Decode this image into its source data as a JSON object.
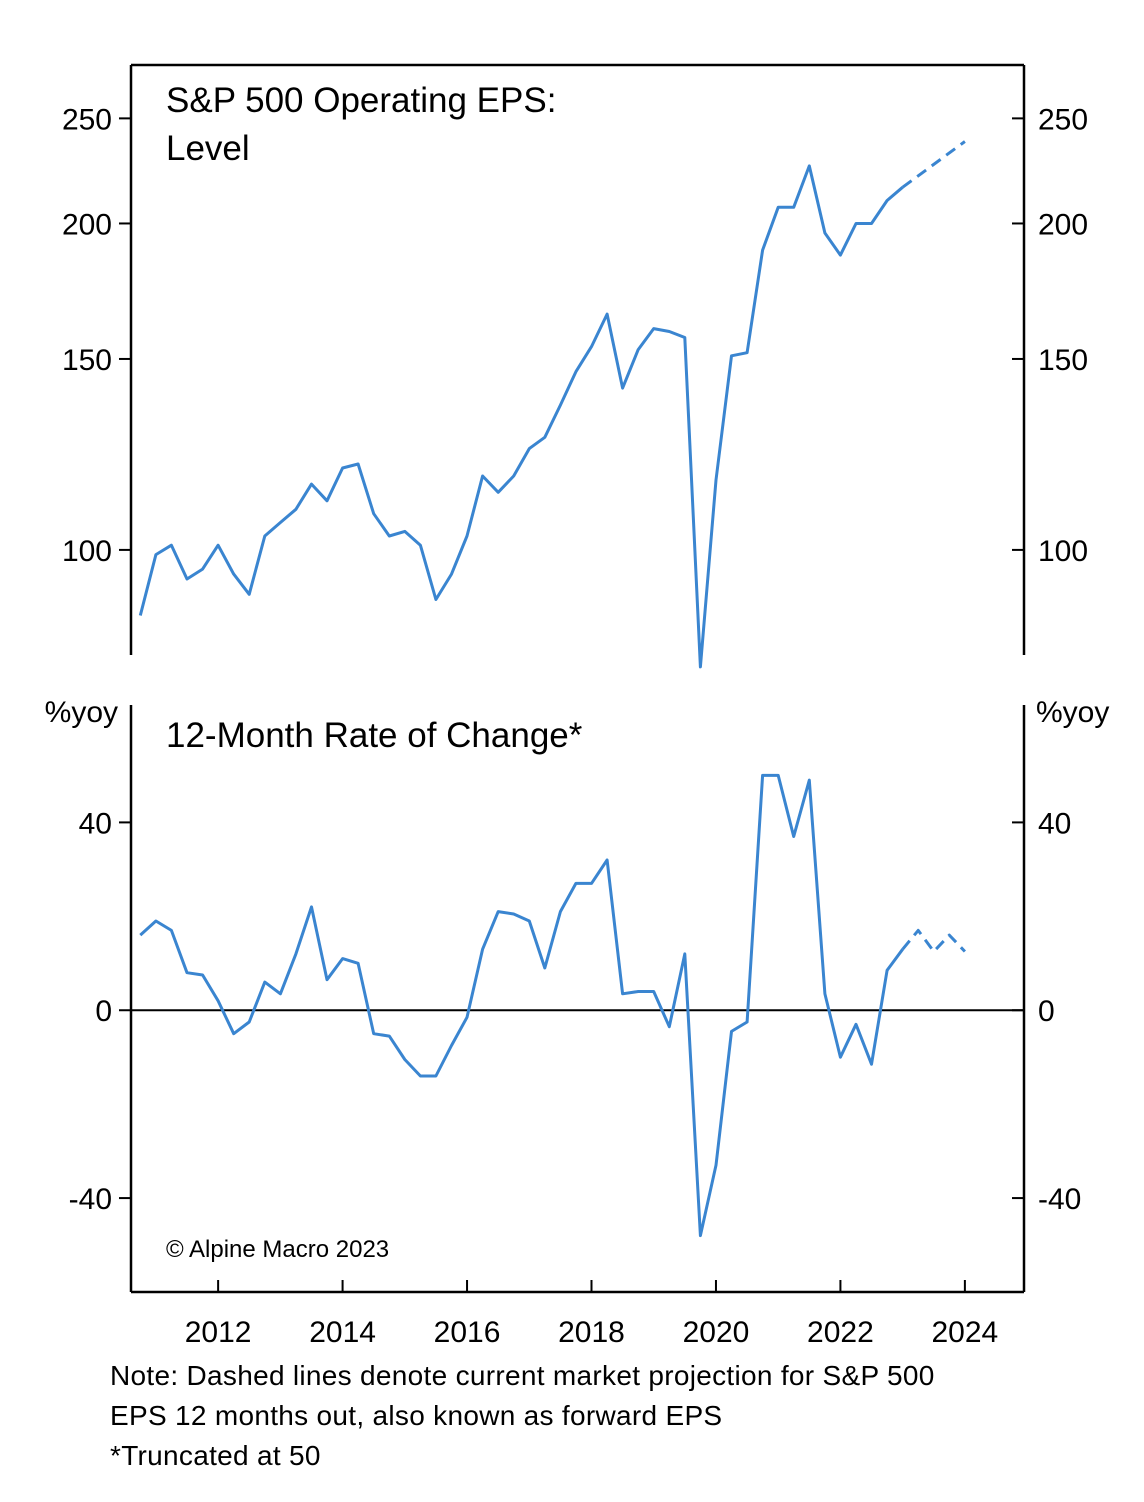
{
  "chart_data": [
    {
      "type": "line",
      "title": "S&P 500 Operating EPS:",
      "subtitle": "Level",
      "y_scale": "log",
      "ylim": [
        80,
        280
      ],
      "yticks": [
        100,
        150,
        200,
        250
      ],
      "ytick_labels": [
        "100",
        "150",
        "200",
        "250"
      ],
      "series": [
        {
          "style": "solid",
          "color": "#3a85d0",
          "x": [
            2010.75,
            2011.0,
            2011.25,
            2011.5,
            2011.75,
            2012.0,
            2012.25,
            2012.5,
            2012.75,
            2013.0,
            2013.25,
            2013.5,
            2013.75,
            2014.0,
            2014.25,
            2014.5,
            2014.75,
            2015.0,
            2015.25,
            2015.5,
            2015.75,
            2016.0,
            2016.25,
            2016.5,
            2016.75,
            2017.0,
            2017.25,
            2017.5,
            2017.75,
            2018.0,
            2018.25,
            2018.5,
            2018.75,
            2019.0,
            2019.25,
            2019.5,
            2019.75,
            2020.0,
            2020.25,
            2020.5,
            2020.75,
            2021.0,
            2021.25,
            2021.5,
            2021.75,
            2022.0,
            2022.25,
            2022.5,
            2022.75,
            2023.0
          ],
          "y": [
            87,
            99,
            101,
            94,
            96,
            101,
            95,
            91,
            103,
            106,
            109,
            115,
            111,
            119,
            120,
            108,
            103,
            104,
            101,
            90,
            95,
            103,
            117,
            113,
            117,
            124,
            127,
            136,
            146,
            154,
            165,
            141,
            153,
            160,
            159,
            157,
            78,
            116,
            151,
            152,
            189,
            207,
            207,
            226,
            196,
            187,
            200,
            200,
            210,
            216
          ]
        },
        {
          "style": "dashed",
          "color": "#3a85d0",
          "x": [
            2023.0,
            2024.0
          ],
          "y": [
            216,
            238
          ]
        }
      ]
    },
    {
      "type": "line",
      "title": "12-Month Rate of Change*",
      "ylabel": "%yoy",
      "ylim": [
        -60,
        65
      ],
      "yticks": [
        -40,
        0,
        40
      ],
      "ytick_labels": [
        "-40",
        "0",
        "40"
      ],
      "x_ticks": [
        2012,
        2014,
        2016,
        2018,
        2020,
        2022,
        2024
      ],
      "x_tick_labels": [
        "2012",
        "2014",
        "2016",
        "2018",
        "2020",
        "2022",
        "2024"
      ],
      "xlim": [
        2010.6,
        2024.95
      ],
      "zero_line": true,
      "annotation": "© Alpine Macro 2023",
      "series": [
        {
          "style": "solid",
          "color": "#3a85d0",
          "x": [
            2010.75,
            2011.0,
            2011.25,
            2011.5,
            2011.75,
            2012.0,
            2012.25,
            2012.5,
            2012.75,
            2013.0,
            2013.25,
            2013.5,
            2013.75,
            2014.0,
            2014.25,
            2014.5,
            2014.75,
            2015.0,
            2015.25,
            2015.5,
            2015.75,
            2016.0,
            2016.25,
            2016.5,
            2016.75,
            2017.0,
            2017.25,
            2017.5,
            2017.75,
            2018.0,
            2018.25,
            2018.5,
            2018.75,
            2019.0,
            2019.25,
            2019.5,
            2019.75,
            2020.0,
            2020.25,
            2020.5,
            2020.75,
            2021.0,
            2021.25,
            2021.5,
            2021.75,
            2022.0,
            2022.25,
            2022.5,
            2022.75,
            2023.0
          ],
          "y": [
            16,
            19,
            17,
            8,
            7.5,
            2,
            -5,
            -2.5,
            6,
            3.5,
            12,
            22,
            6.5,
            11,
            10,
            -5,
            -5.5,
            -10.5,
            -14,
            -14,
            -7.5,
            -1.5,
            13,
            21,
            20.5,
            19,
            9,
            21,
            27,
            27,
            32,
            3.5,
            4,
            4,
            -3.5,
            12,
            -48,
            -33,
            -4.5,
            -2.5,
            50,
            50,
            37,
            49,
            3.5,
            -10,
            -3,
            -11.5,
            8.5,
            13
          ]
        },
        {
          "style": "dashed",
          "color": "#3a85d0",
          "x": [
            2023.0,
            2023.25,
            2023.5,
            2023.75,
            2024.0
          ],
          "y": [
            13,
            17,
            12.5,
            16,
            12.5
          ]
        }
      ]
    }
  ],
  "note": {
    "line1": "Note: Dashed lines denote current market projection for S&P 500",
    "line2": "EPS 12 months out, also known as forward EPS",
    "line3": "*Truncated at 50"
  }
}
